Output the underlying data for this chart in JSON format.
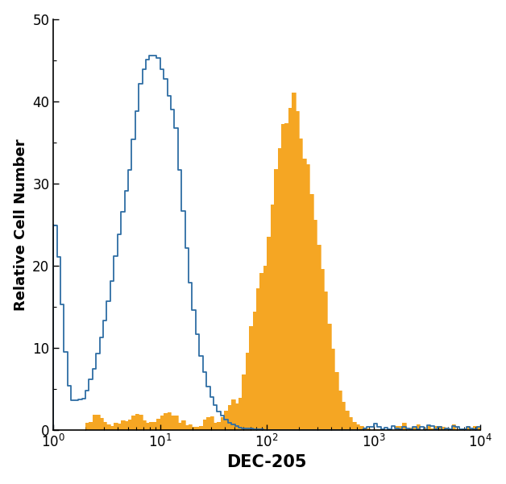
{
  "title": "",
  "xlabel": "DEC-205",
  "ylabel": "Relative Cell Number",
  "xlim_log": [
    0,
    4
  ],
  "ylim": [
    0,
    50
  ],
  "yticks": [
    0,
    10,
    20,
    30,
    40,
    50
  ],
  "background_color": "#ffffff",
  "blue_color": "#2e6da4",
  "orange_color": "#f5a623",
  "xlabel_fontsize": 15,
  "ylabel_fontsize": 13,
  "tick_fontsize": 12,
  "n_bins": 120
}
